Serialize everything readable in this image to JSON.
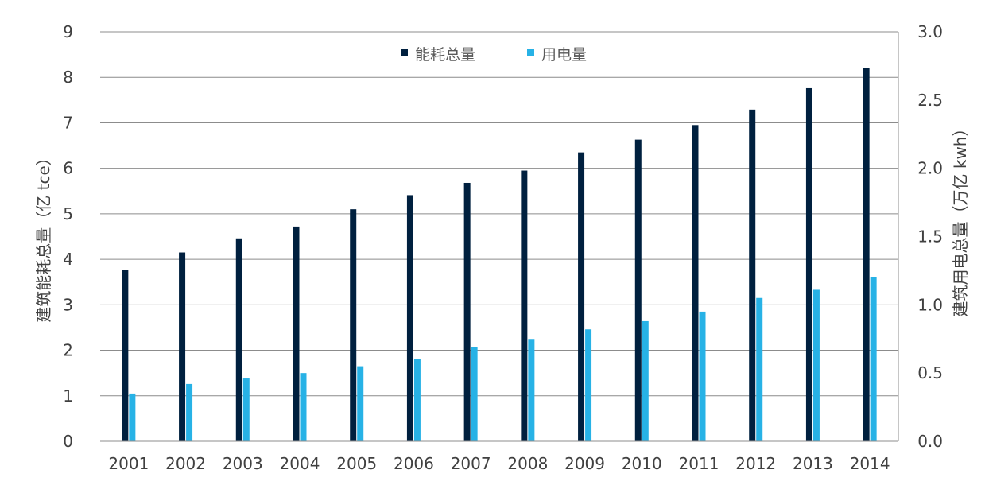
{
  "chart_data": {
    "type": "bar",
    "categories": [
      "2001",
      "2002",
      "2003",
      "2004",
      "2005",
      "2006",
      "2007",
      "2008",
      "2009",
      "2010",
      "2011",
      "2012",
      "2013",
      "2014"
    ],
    "series": [
      {
        "name": "能耗总量",
        "axis": "left",
        "color": "#00203f",
        "values": [
          3.77,
          4.15,
          4.46,
          4.72,
          5.1,
          5.41,
          5.68,
          5.95,
          6.35,
          6.63,
          6.95,
          7.29,
          7.76,
          8.2
        ]
      },
      {
        "name": "用电量",
        "axis": "right",
        "color": "#27b2e6",
        "values": [
          0.35,
          0.42,
          0.46,
          0.5,
          0.55,
          0.6,
          0.69,
          0.75,
          0.82,
          0.88,
          0.95,
          1.05,
          1.11,
          1.2
        ]
      }
    ],
    "ylabel_left": "建筑能耗总量（亿 tce）",
    "ylabel_right": "建筑用电总量（万亿 kwh）",
    "ylim_left": [
      0,
      9
    ],
    "yticks_left": [
      "0",
      "1",
      "2",
      "3",
      "4",
      "5",
      "6",
      "7",
      "8",
      "9"
    ],
    "ylim_right": [
      0,
      3
    ],
    "yticks_right": [
      "0.0",
      "0.5",
      "1.0",
      "1.5",
      "2.0",
      "2.5",
      "3.0"
    ],
    "grid": true,
    "legend_position": "top-center"
  }
}
